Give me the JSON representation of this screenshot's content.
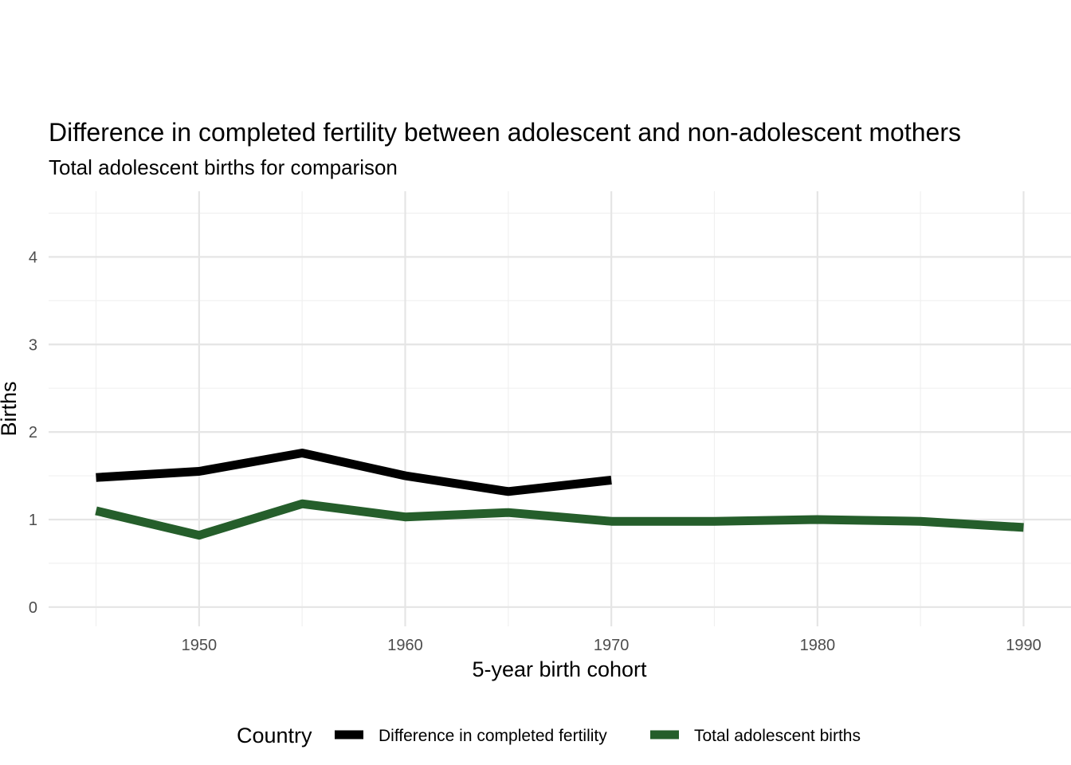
{
  "chart_data": {
    "type": "line",
    "title": "Difference in completed fertility between adolescent and non-adolescent mothers",
    "subtitle": "Total adolescent births for comparison",
    "xlabel": "5-year birth cohort",
    "ylabel": "Births",
    "xlim": [
      1942.7,
      1992.3
    ],
    "ylim": [
      -0.22,
      4.75
    ],
    "x_ticks": [
      1950,
      1960,
      1970,
      1980,
      1990
    ],
    "x_minor_ticks": [
      1945,
      1955,
      1965,
      1975,
      1985
    ],
    "y_ticks": [
      0,
      1,
      2,
      3,
      4
    ],
    "y_minor_ticks": [
      0.5,
      1.5,
      2.5,
      3.5,
      4.5
    ],
    "grid": true,
    "legend": {
      "title": "Country",
      "position": "bottom"
    },
    "series": [
      {
        "name": "Difference in completed fertility",
        "color": "#000000",
        "x": [
          1945,
          1950,
          1955,
          1960,
          1965,
          1970
        ],
        "y": [
          1.48,
          1.55,
          1.76,
          1.5,
          1.32,
          1.45
        ]
      },
      {
        "name": "Total adolescent births",
        "color": "#255e2b",
        "x": [
          1945,
          1950,
          1955,
          1960,
          1965,
          1970,
          1975,
          1980,
          1985,
          1990
        ],
        "y": [
          1.1,
          0.82,
          1.18,
          1.03,
          1.08,
          0.98,
          0.98,
          1.0,
          0.98,
          0.91
        ]
      }
    ]
  }
}
